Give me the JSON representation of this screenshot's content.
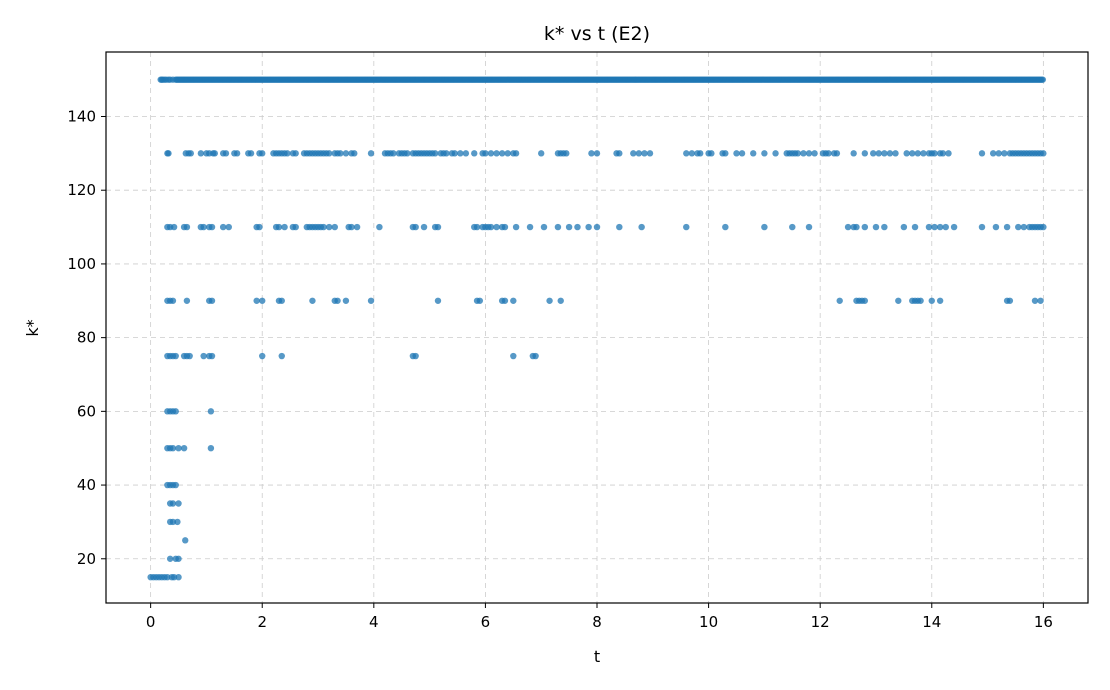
{
  "chart_data": {
    "type": "scatter",
    "title": "k* vs t (E2)",
    "xlabel": "t",
    "ylabel": "k*",
    "xlim": [
      -0.8,
      16.8
    ],
    "ylim": [
      8,
      157.5
    ],
    "xticks": [
      0,
      2,
      4,
      6,
      8,
      10,
      12,
      14,
      16
    ],
    "yticks": [
      20,
      40,
      60,
      80,
      100,
      120,
      140
    ],
    "grid": true,
    "point_color": "#1f77b4",
    "series": [
      {
        "values_by_k": {
          "150": {
            "dense_range": [
              0.45,
              16.0
            ],
            "points": [
              0.18,
              0.2,
              0.22,
              0.25,
              0.28,
              0.32,
              0.35,
              0.4
            ]
          },
          "130": {
            "points": [
              0.3,
              0.32,
              0.63,
              0.68,
              0.72,
              0.9,
              1.0,
              1.05,
              1.12,
              1.15,
              1.3,
              1.35,
              1.5,
              1.55,
              1.75,
              1.8,
              1.95,
              2.0,
              2.2,
              2.25,
              2.3,
              2.35,
              2.4,
              2.45,
              2.55,
              2.6,
              2.75,
              2.8,
              2.85,
              2.9,
              2.95,
              3.0,
              3.05,
              3.1,
              3.15,
              3.2,
              3.3,
              3.35,
              3.4,
              3.5,
              3.6,
              3.65,
              3.95,
              4.2,
              4.25,
              4.3,
              4.35,
              4.45,
              4.5,
              4.55,
              4.6,
              4.7,
              4.75,
              4.8,
              4.85,
              4.9,
              4.95,
              5.0,
              5.05,
              5.1,
              5.2,
              5.25,
              5.3,
              5.4,
              5.45,
              5.55,
              5.65,
              5.8,
              5.95,
              6.0,
              6.1,
              6.2,
              6.3,
              6.4,
              6.5,
              6.55,
              7.0,
              7.3,
              7.35,
              7.4,
              7.45,
              7.9,
              8.0,
              8.35,
              8.4,
              8.65,
              8.75,
              8.85,
              8.95,
              9.6,
              9.7,
              9.8,
              9.85,
              10.0,
              10.05,
              10.25,
              10.3,
              10.5,
              10.6,
              10.8,
              11.0,
              11.2,
              11.4,
              11.45,
              11.5,
              11.55,
              11.6,
              11.7,
              11.8,
              11.9,
              12.05,
              12.1,
              12.15,
              12.25,
              12.3,
              12.6,
              12.8,
              12.95,
              13.05,
              13.15,
              13.25,
              13.35,
              13.55,
              13.65,
              13.75,
              13.85,
              13.95,
              14.0,
              14.05,
              14.15,
              14.2,
              14.3,
              14.9,
              15.1,
              15.2,
              15.3,
              15.4,
              15.45,
              15.5,
              15.55,
              15.6,
              15.65,
              15.7,
              15.75,
              15.8,
              15.85,
              15.9,
              15.95,
              16.0
            ]
          },
          "110": {
            "points": [
              0.3,
              0.35,
              0.42,
              0.6,
              0.65,
              0.9,
              0.95,
              1.05,
              1.1,
              1.3,
              1.4,
              1.9,
              1.95,
              2.25,
              2.3,
              2.4,
              2.55,
              2.6,
              2.8,
              2.85,
              2.9,
              2.95,
              3.0,
              3.05,
              3.1,
              3.2,
              3.3,
              3.55,
              3.6,
              3.7,
              4.1,
              4.7,
              4.75,
              4.9,
              5.1,
              5.15,
              5.8,
              5.85,
              5.95,
              6.0,
              6.05,
              6.1,
              6.2,
              6.3,
              6.35,
              6.55,
              6.8,
              7.05,
              7.3,
              7.5,
              7.65,
              7.85,
              8.0,
              8.4,
              8.8,
              9.6,
              10.3,
              11.0,
              11.5,
              11.8,
              12.5,
              12.6,
              12.65,
              12.8,
              13.0,
              13.15,
              13.5,
              13.7,
              13.95,
              14.05,
              14.15,
              14.25,
              14.4,
              14.9,
              15.15,
              15.35,
              15.55,
              15.65,
              15.75,
              15.8,
              15.85,
              15.9,
              15.95,
              16.0
            ]
          },
          "90": {
            "points": [
              0.3,
              0.35,
              0.4,
              0.65,
              1.05,
              1.1,
              1.9,
              2.0,
              2.3,
              2.35,
              2.9,
              3.3,
              3.35,
              3.5,
              3.95,
              5.15,
              5.85,
              5.9,
              6.3,
              6.35,
              6.5,
              7.15,
              7.35,
              12.35,
              12.65,
              12.7,
              12.75,
              12.8,
              13.4,
              13.65,
              13.7,
              13.75,
              13.8,
              14.0,
              14.15,
              15.35,
              15.4,
              15.85,
              15.95
            ]
          },
          "75": {
            "points": [
              0.3,
              0.35,
              0.4,
              0.45,
              0.6,
              0.65,
              0.7,
              0.95,
              1.05,
              1.1,
              2.0,
              2.35,
              4.7,
              4.75,
              6.5,
              6.85,
              6.9
            ]
          },
          "60": {
            "points": [
              0.3,
              0.35,
              0.4,
              0.45,
              1.08
            ]
          },
          "50": {
            "points": [
              0.3,
              0.35,
              0.4,
              0.5,
              0.6,
              1.08
            ]
          },
          "40": {
            "points": [
              0.3,
              0.35,
              0.4,
              0.45
            ]
          },
          "35": {
            "points": [
              0.35,
              0.4,
              0.5
            ]
          },
          "30": {
            "points": [
              0.35,
              0.4,
              0.48
            ]
          },
          "25": {
            "points": [
              0.62
            ]
          },
          "20": {
            "points": [
              0.35,
              0.45,
              0.5
            ]
          },
          "15": {
            "points": [
              0.0,
              0.05,
              0.1,
              0.15,
              0.2,
              0.25,
              0.3,
              0.38,
              0.42,
              0.5
            ]
          }
        }
      }
    ]
  }
}
